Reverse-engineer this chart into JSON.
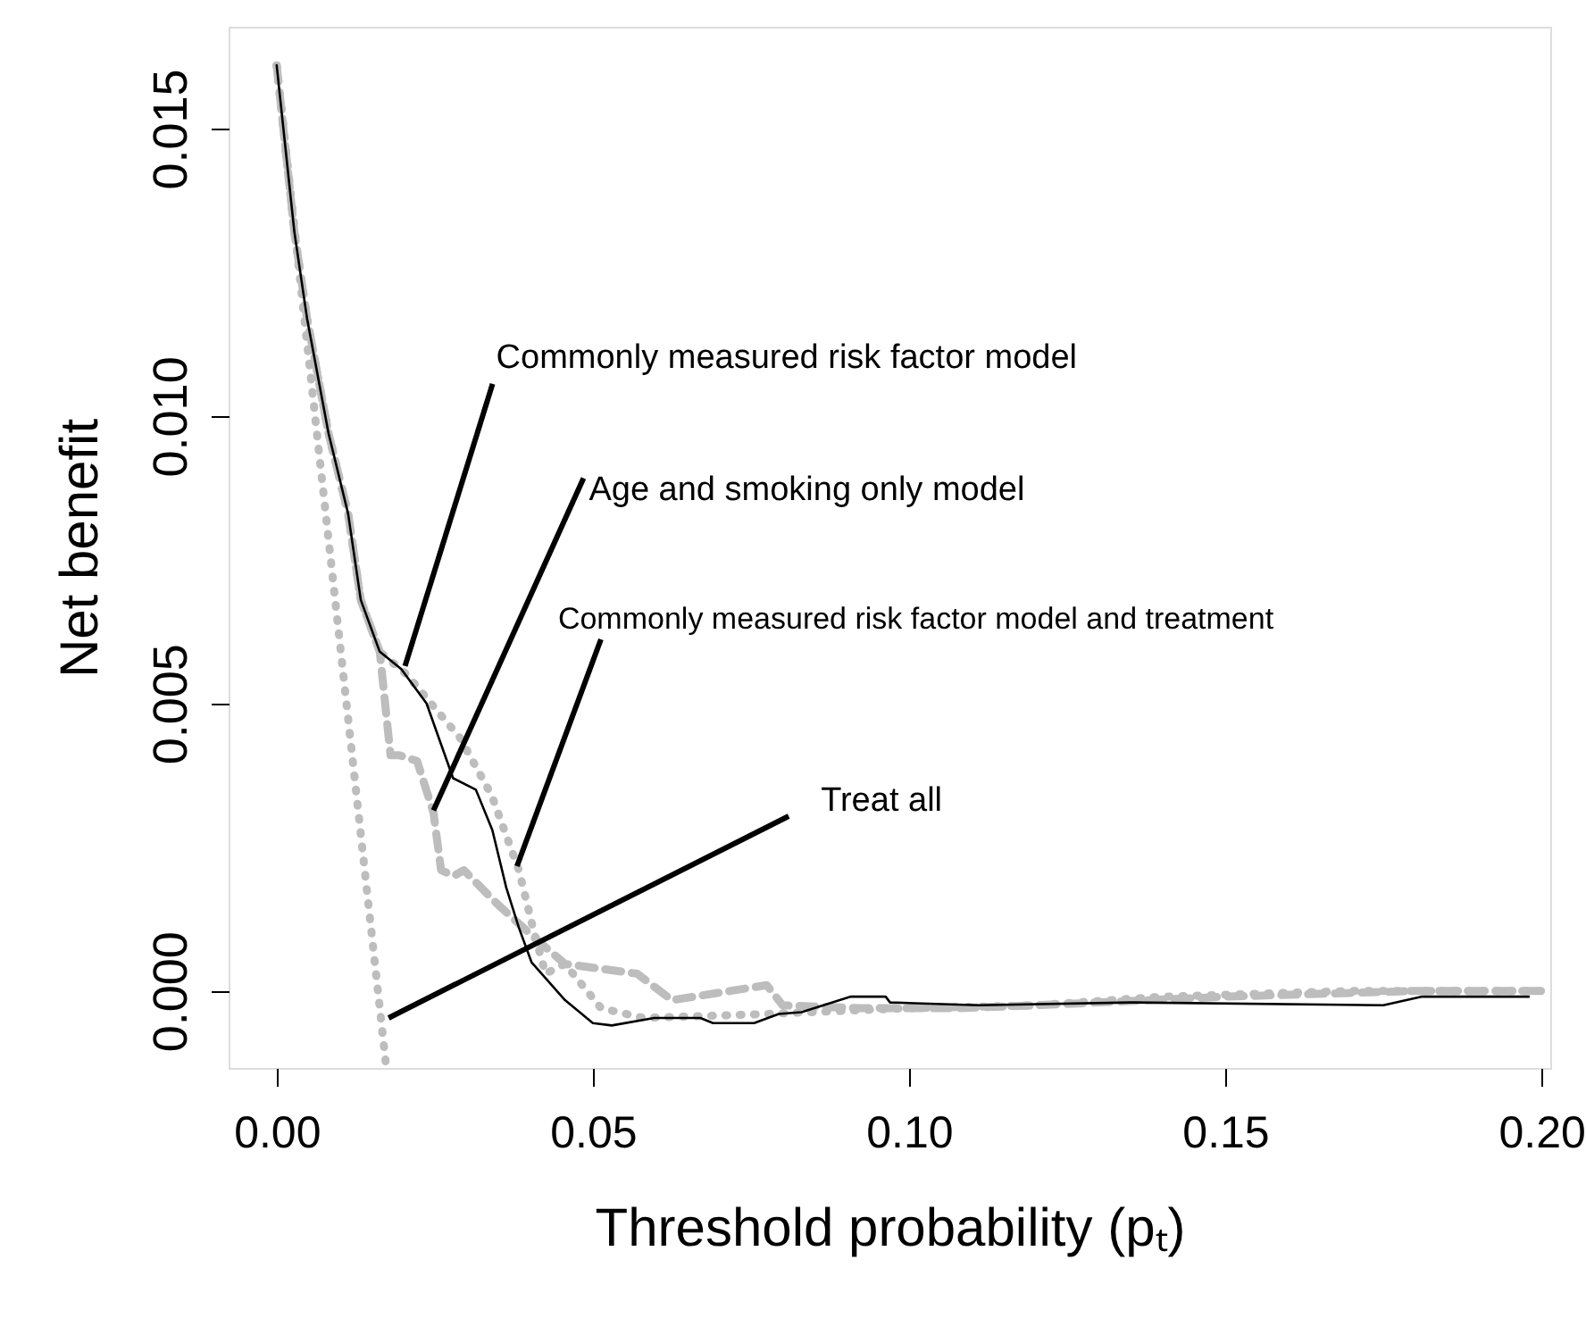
{
  "chart_data": {
    "type": "line",
    "xlabel": "Threshold probability (pₜ)",
    "ylabel": "Net benefit",
    "xlim": [
      -0.0076,
      0.2014
    ],
    "ylim": [
      -0.00134,
      0.01677
    ],
    "xticks": [
      {
        "value": 0,
        "label": "0.00"
      },
      {
        "value": 0.05,
        "label": "0.05"
      },
      {
        "value": 0.1,
        "label": "0.10"
      },
      {
        "value": 0.15,
        "label": "0.15"
      },
      {
        "value": 0.2,
        "label": "0.20"
      }
    ],
    "yticks": [
      {
        "value": 0,
        "label": "0.000"
      },
      {
        "value": 0.005,
        "label": "0.005"
      },
      {
        "value": 0.01,
        "label": "0.010"
      },
      {
        "value": 0.015,
        "label": "0.015"
      }
    ],
    "grid": false,
    "marker": "none",
    "series": [
      {
        "color": "#000000",
        "line_style": "solid",
        "x": [
          0,
          0.0028,
          0.0048,
          0.0082,
          0.0113,
          0.0133,
          0.0163,
          0.0197,
          0.0237,
          0.0279,
          0.0315,
          0.0341,
          0.0363,
          0.0383,
          0.0403,
          0.0456,
          0.05,
          0.053,
          0.0597,
          0.067,
          0.069,
          0.0755,
          0.0794,
          0.083,
          0.0907,
          0.0963,
          0.097,
          0.111,
          0.135,
          0.175,
          0.181,
          0.198
        ],
        "values": [
          0.0161,
          0.0132,
          0.0117,
          0.0097,
          0.0083,
          0.0068,
          0.0059,
          0.0056,
          0.005,
          0.0037,
          0.0035,
          0.0028,
          0.0018,
          0.0011,
          0.0005,
          -0.00016,
          -0.00056,
          -0.0006,
          -0.00047,
          -0.00047,
          -0.00056,
          -0.00056,
          -0.0004,
          -0.00037,
          -0.0001,
          -0.0001,
          -0.0002,
          -0.00025,
          -0.0002,
          -0.00025,
          -0.0001,
          -0.0001
        ]
      },
      {
        "color": "#bdbdbd",
        "line_style": "dashed",
        "x": [
          0,
          0.0028,
          0.0048,
          0.0082,
          0.0113,
          0.0133,
          0.0163,
          0.018,
          0.0194,
          0.0222,
          0.0248,
          0.026,
          0.028,
          0.0296,
          0.035,
          0.041,
          0.0456,
          0.057,
          0.0625,
          0.066,
          0.0775,
          0.08,
          0.092,
          0.1077,
          0.12,
          0.15,
          0.18,
          0.2
        ],
        "values": [
          0.0161,
          0.0132,
          0.0117,
          0.0097,
          0.0083,
          0.0068,
          0.0059,
          0.0041,
          0.0041,
          0.004,
          0.0031,
          0.0021,
          0.002,
          0.0021,
          0.0015,
          0.0009,
          0.00047,
          0.0003,
          -0.00016,
          -0.0001,
          0.0001,
          -0.00025,
          -0.0003,
          -0.0003,
          -0.00025,
          -0.0001,
          0,
          0
        ]
      },
      {
        "color": "#bdbdbd",
        "line_style": "dotted",
        "x": [
          0,
          0.0028,
          0.0048,
          0.0082,
          0.0113,
          0.0133,
          0.0163,
          0.0206,
          0.029,
          0.034,
          0.0383,
          0.0403,
          0.0425,
          0.0456,
          0.0513,
          0.058,
          0.0775,
          0.1,
          0.12,
          0.14,
          0.17,
          0.2
        ],
        "values": [
          0.0161,
          0.0132,
          0.0117,
          0.0097,
          0.0083,
          0.0068,
          0.0059,
          0.0055,
          0.0044,
          0.0034,
          0.0021,
          0.0012,
          0.0003,
          0.00047,
          -0.0003,
          -0.00047,
          -0.0004,
          -0.0003,
          -0.00025,
          -0.0001,
          0,
          0
        ]
      },
      {
        "color": "#bdbdbd",
        "line_style": "dotted",
        "x": [
          0,
          0.0173
        ],
        "values": [
          0.0161,
          -0.0013
        ]
      }
    ],
    "annotations": [
      {
        "text": "Commonly measured risk factor model",
        "x": 0.0203,
        "y": 0.00565
      },
      {
        "text": "Age and smoking only model",
        "x": 0.0248,
        "y": 0.00314
      },
      {
        "text": "Commonly measured risk factor model and treatment",
        "x": 0.038,
        "y": 0.00217
      },
      {
        "text": "Treat all",
        "x": 0.0177,
        "y": -0.00047
      }
    ]
  }
}
